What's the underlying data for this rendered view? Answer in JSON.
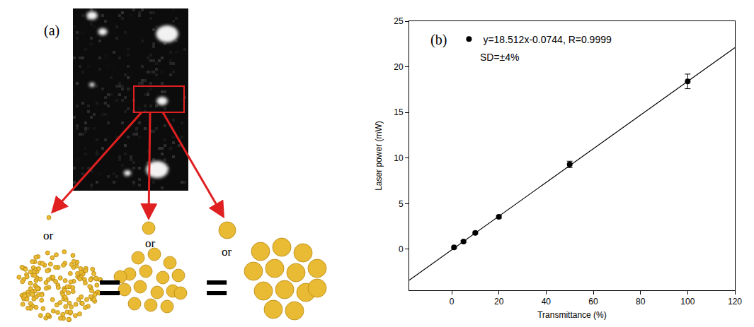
{
  "panel_a": {
    "label": "(a)",
    "or_labels": [
      "or",
      "or",
      "or"
    ],
    "equals": [
      "=",
      "="
    ]
  },
  "chart_data": {
    "type": "scatter",
    "panel_label": "(b)",
    "x_label": "Transmittance (%)",
    "y_label": "Laser power (mW)",
    "series": [
      {
        "name": "y=18.512x-0.0744, R=0.9999",
        "type": "scatter",
        "color": "#000000",
        "marker": "circle",
        "x": [
          1,
          5,
          10,
          20,
          50,
          100
        ],
        "values": [
          0.2,
          0.85,
          1.8,
          3.55,
          9.3,
          18.4
        ],
        "error": [
          0.1,
          0.1,
          0.1,
          0.15,
          0.35,
          0.8
        ]
      },
      {
        "type": "line",
        "color": "#000000",
        "line_style": "solid",
        "x": [
          -18,
          120
        ],
        "values": [
          -3.4,
          22.1
        ]
      }
    ],
    "annotations": [
      "SD=±4%"
    ],
    "xlim": [
      -18,
      120
    ],
    "xticks": [
      0,
      20,
      40,
      60,
      80,
      100,
      120
    ],
    "ylim": [
      -4.5,
      25
    ],
    "yticks": [
      0,
      5,
      10,
      15,
      20,
      25
    ],
    "grid": false,
    "legend": "upper left"
  }
}
